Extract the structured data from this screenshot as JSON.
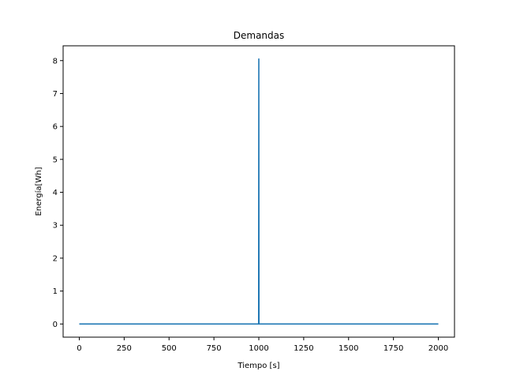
{
  "chart_data": {
    "type": "line",
    "title": "Demandas",
    "xlabel": "Tiempo [s]",
    "ylabel": "Energía[Wh]",
    "xlim": [
      -90,
      2090
    ],
    "ylim": [
      -0.4,
      8.45
    ],
    "xticks": [
      0,
      250,
      500,
      750,
      1000,
      1250,
      1500,
      1750,
      2000
    ],
    "yticks": [
      0,
      1,
      2,
      3,
      4,
      5,
      6,
      7,
      8
    ],
    "grid": false,
    "line_color": "#1f77b4",
    "series": [
      {
        "x": [
          0,
          999,
          1000,
          1001,
          2000
        ],
        "values": [
          0,
          0,
          8.05,
          0,
          0
        ]
      }
    ]
  }
}
